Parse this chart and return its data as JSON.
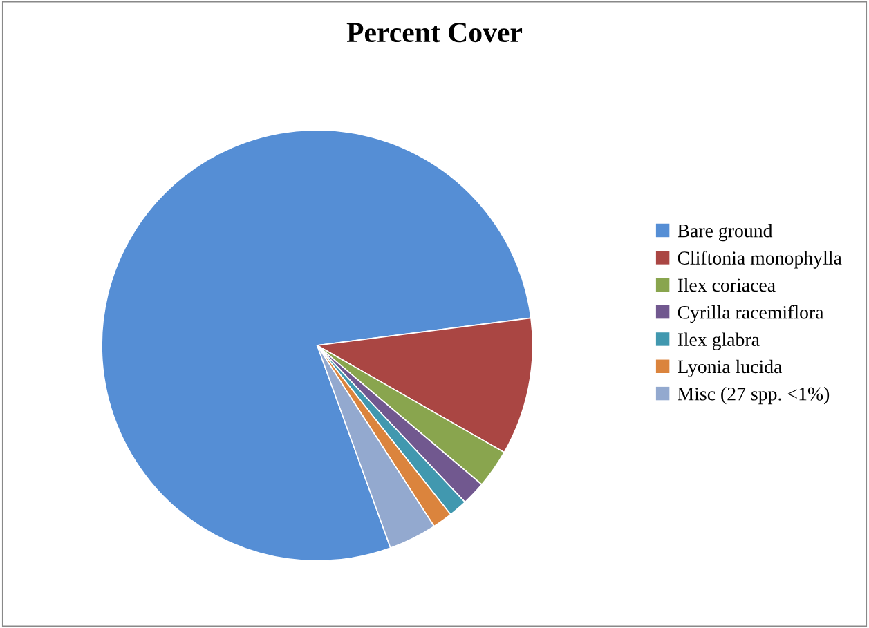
{
  "chart_data": {
    "type": "pie",
    "title": "Percent Cover",
    "categories": [
      "Bare ground",
      "Cliftonia monophylla",
      "Ilex coriacea",
      "Cyrilla racemiflora",
      "Ilex glabra",
      "Lyonia lucida",
      "Misc (27 spp. <1%)"
    ],
    "values": [
      78.5,
      10.3,
      2.9,
      1.8,
      1.4,
      1.5,
      3.6
    ],
    "colors": [
      "#558ed5",
      "#aa4643",
      "#89a54e",
      "#71588f",
      "#4198af",
      "#db843d",
      "#93a9cf"
    ],
    "legend": "right"
  }
}
